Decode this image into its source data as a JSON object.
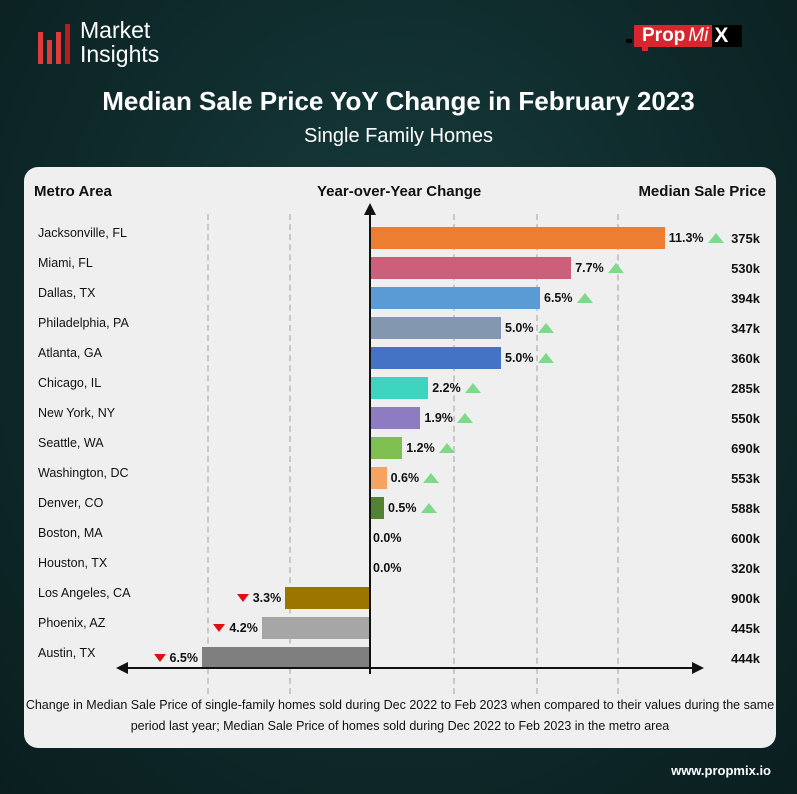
{
  "brand": {
    "logo_text_line1": "Market",
    "logo_text_line2": "Insights",
    "partner_logo": "PropMiX",
    "website": "www.propmix.io"
  },
  "chart_data": {
    "type": "bar",
    "orientation": "horizontal",
    "title": "Median Sale Price YoY Change in February 2023",
    "subtitle": "Single Family Homes",
    "col_left": "Metro Area",
    "col_center": "Year-over-Year Change",
    "col_right": "Median Sale Price",
    "xlabel": "Year-over-Year Change (%)",
    "rows": [
      {
        "metro": "Jacksonville, FL",
        "yoy": 11.3,
        "label": "11.3%",
        "price": "375k",
        "color": "#ed7d31"
      },
      {
        "metro": "Miami, FL",
        "yoy": 7.7,
        "label": "7.7%",
        "price": "530k",
        "color": "#cc5f7a"
      },
      {
        "metro": "Dallas, TX",
        "yoy": 6.5,
        "label": "6.5%",
        "price": "394k",
        "color": "#5b9bd5"
      },
      {
        "metro": "Philadelphia, PA",
        "yoy": 5.0,
        "label": "5.0%",
        "price": "347k",
        "color": "#8497b0"
      },
      {
        "metro": "Atlanta, GA",
        "yoy": 5.0,
        "label": "5.0%",
        "price": "360k",
        "color": "#4472c4"
      },
      {
        "metro": "Chicago, IL",
        "yoy": 2.2,
        "label": "2.2%",
        "price": "285k",
        "color": "#3fd4c0"
      },
      {
        "metro": "New York, NY",
        "yoy": 1.9,
        "label": "1.9%",
        "price": "550k",
        "color": "#8e7cc3"
      },
      {
        "metro": "Seattle, WA",
        "yoy": 1.2,
        "label": "1.2%",
        "price": "690k",
        "color": "#7fbf52"
      },
      {
        "metro": "Washington, DC",
        "yoy": 0.6,
        "label": "0.6%",
        "price": "553k",
        "color": "#f4a460"
      },
      {
        "metro": "Denver, CO",
        "yoy": 0.5,
        "label": "0.5%",
        "price": "588k",
        "color": "#548235"
      },
      {
        "metro": "Boston, MA",
        "yoy": 0.0,
        "label": "0.0%",
        "price": "600k",
        "color": "#999999"
      },
      {
        "metro": "Houston, TX",
        "yoy": 0.0,
        "label": "0.0%",
        "price": "320k",
        "color": "#999999"
      },
      {
        "metro": "Los Angeles, CA",
        "yoy": -3.3,
        "label": "3.3%",
        "price": "900k",
        "color": "#9c7400"
      },
      {
        "metro": "Phoenix, AZ",
        "yoy": -4.2,
        "label": "4.2%",
        "price": "445k",
        "color": "#a6a6a6"
      },
      {
        "metro": "Austin, TX",
        "yoy": -6.5,
        "label": "6.5%",
        "price": "444k",
        "color": "#7f7f7f"
      }
    ],
    "note": "Change in Median Sale Price of single-family homes sold during Dec 2022 to Feb 2023 when compared to their values during the same period last year; Median Sale Price of homes sold during Dec 2022 to Feb 2023 in the metro area"
  }
}
